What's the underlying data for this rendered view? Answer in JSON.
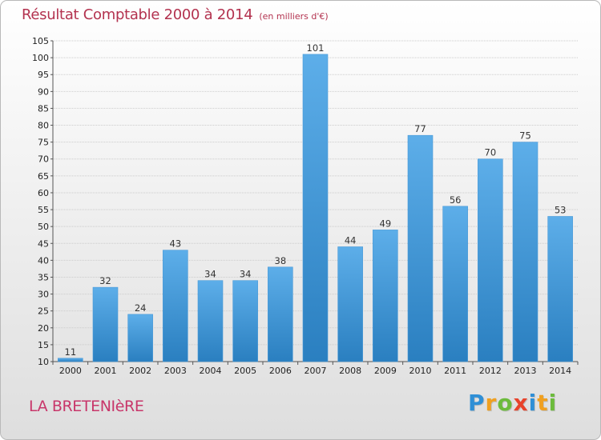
{
  "title": "Résultat Comptable 2000 à 2014",
  "subtitle": "(en milliers d'€)",
  "commune": "LA BRETENIèRE",
  "brand": {
    "letters": [
      "P",
      "r",
      "o",
      "x",
      "i",
      "t",
      "i"
    ],
    "colors": [
      "#2f8fd6",
      "#f0a020",
      "#6cbb3c",
      "#e8432b",
      "#2f8fd6",
      "#f0a020",
      "#6cbb3c"
    ]
  },
  "colors": {
    "bar_top": "#5daee9",
    "bar_bottom": "#2a7fc0",
    "grid": "#cccccc"
  },
  "chart_data": {
    "type": "bar",
    "title": "Résultat Comptable 2000 à 2014",
    "xlabel": "",
    "ylabel": "",
    "categories": [
      "2000",
      "2001",
      "2002",
      "2003",
      "2004",
      "2005",
      "2006",
      "2007",
      "2008",
      "2009",
      "2010",
      "2011",
      "2012",
      "2013",
      "2014"
    ],
    "values": [
      11,
      32,
      24,
      43,
      34,
      34,
      38,
      101,
      44,
      49,
      77,
      56,
      70,
      75,
      53
    ],
    "ylim": [
      10,
      105
    ],
    "yticks": [
      10,
      15,
      20,
      25,
      30,
      35,
      40,
      45,
      50,
      55,
      60,
      65,
      70,
      75,
      80,
      85,
      90,
      95,
      100,
      105
    ],
    "grid": true
  }
}
